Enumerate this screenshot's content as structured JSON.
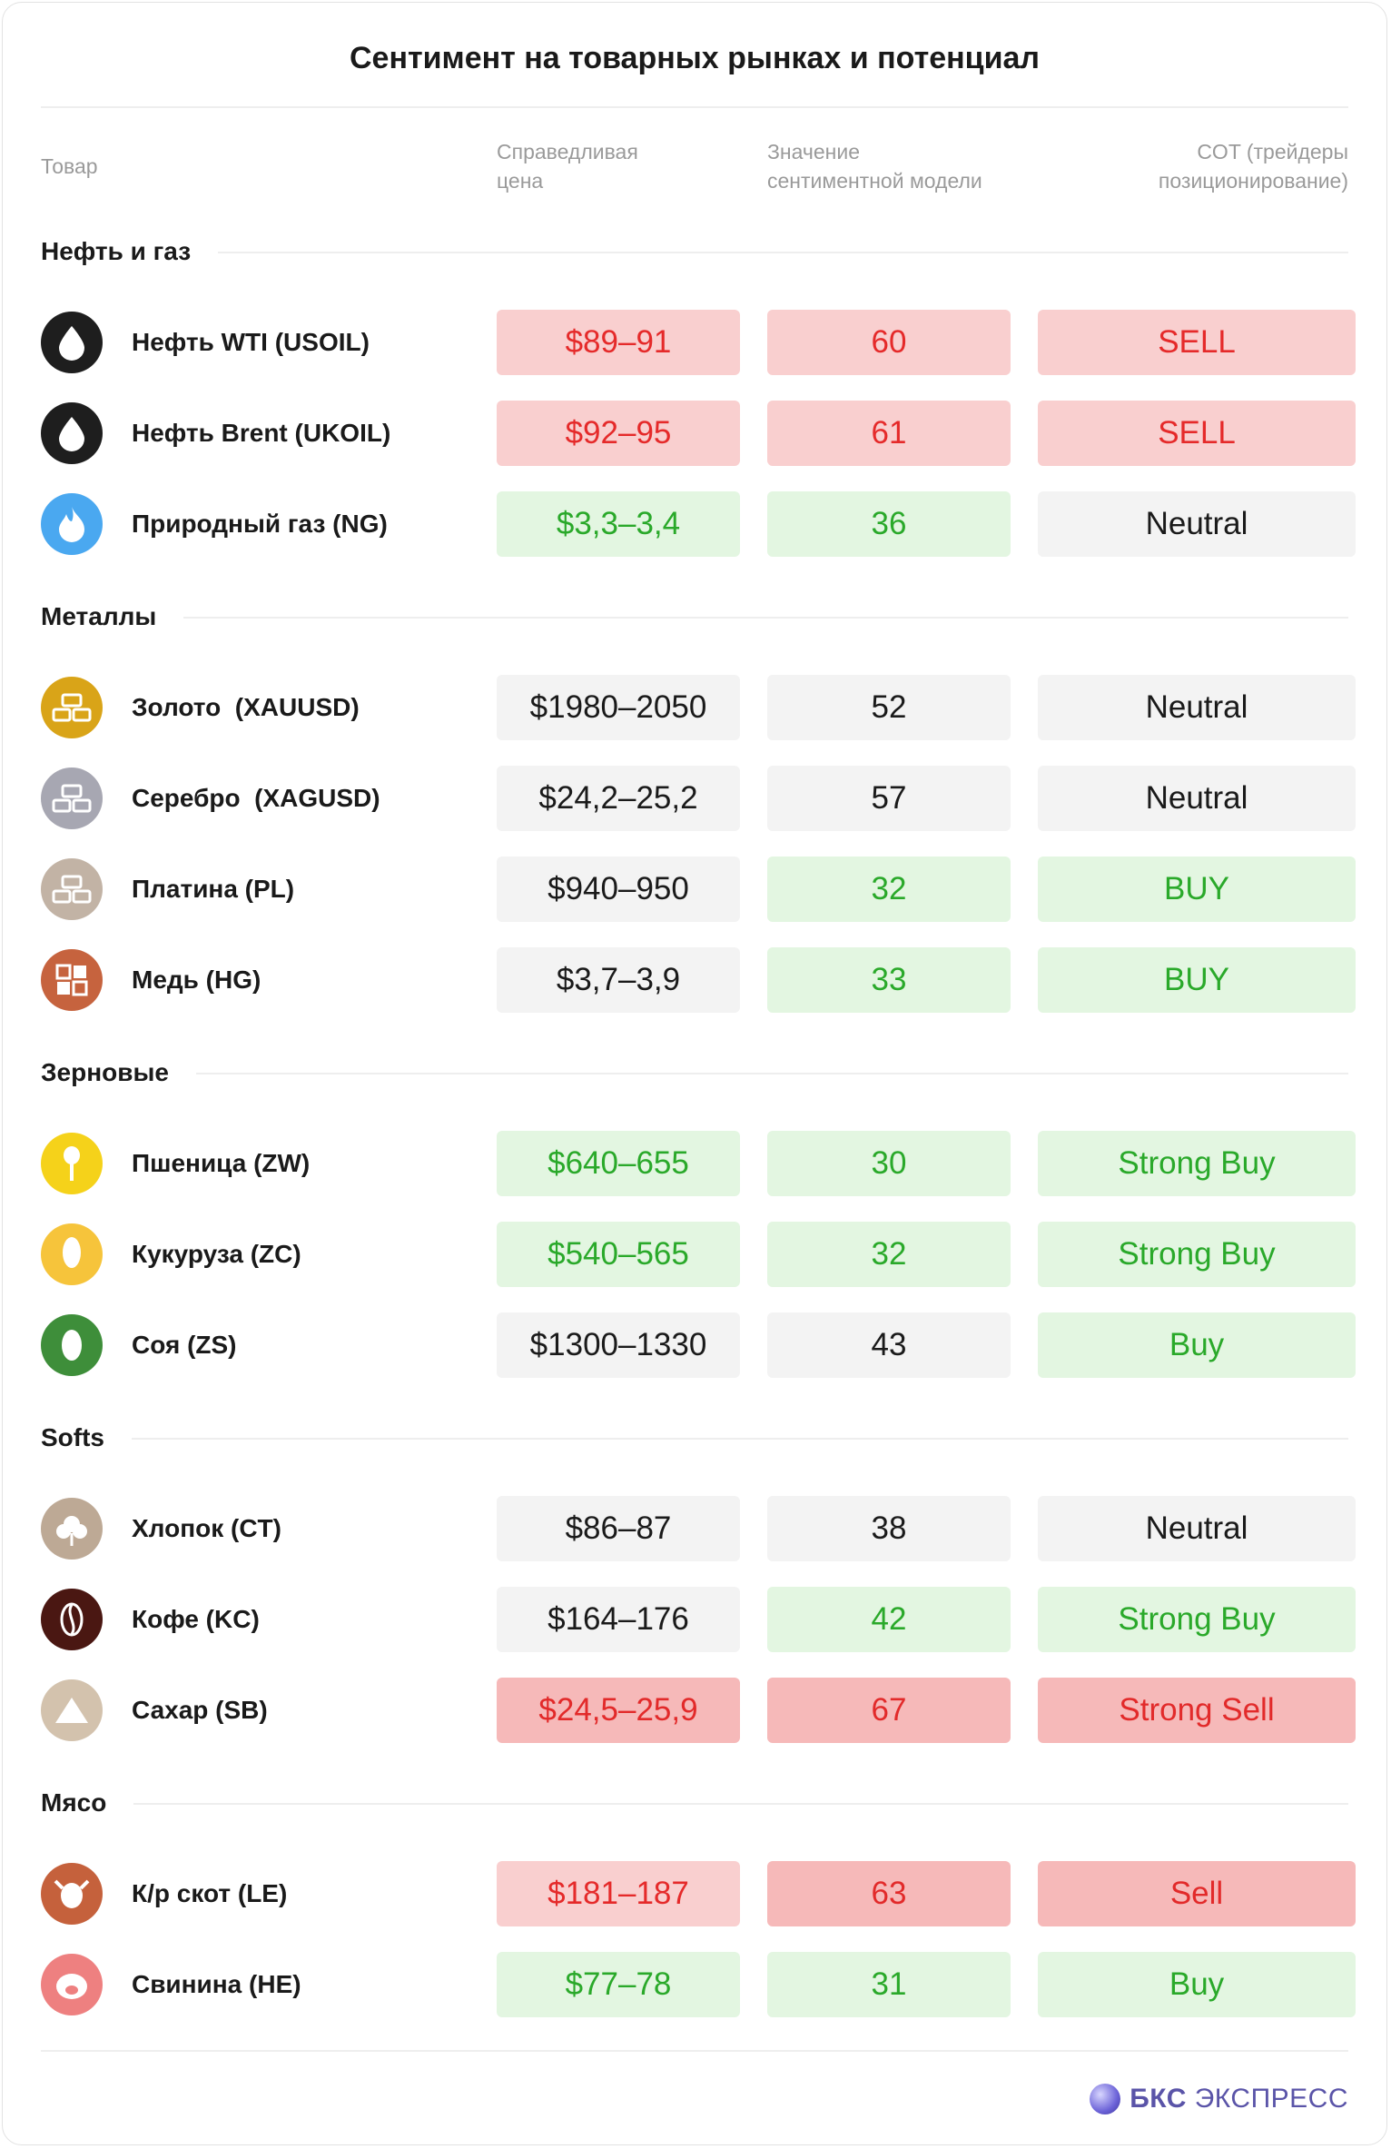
{
  "title": "Сентимент на товарных рынках и потенциал",
  "headers": {
    "col1": "Товар",
    "col2": "Справедливая\nцена",
    "col3": "Значение\nсентиментной модели",
    "col4": "COT (трейдеры\nпозиционирование)"
  },
  "sections": [
    {
      "label": "Нефть и газ"
    },
    {
      "label": "Металлы"
    },
    {
      "label": "Зерновые"
    },
    {
      "label": "Softs"
    },
    {
      "label": "Мясо"
    }
  ],
  "rows": [
    {
      "name": "Нефть WTI (USOIL)",
      "icon": "oil-drop-icon",
      "icon_color": "#1e1e1e",
      "price": "$89–91",
      "price_style": "red",
      "sentiment": "60",
      "sent_style": "red",
      "cot": "SELL",
      "cot_style": "red"
    },
    {
      "name": "Нефть Brent (UKOIL)",
      "icon": "oil-drop-icon",
      "icon_color": "#1e1e1e",
      "price": "$92–95",
      "price_style": "red",
      "sentiment": "61",
      "sent_style": "red",
      "cot": "SELL",
      "cot_style": "red"
    },
    {
      "name": "Природный газ (NG)",
      "icon": "flame-icon",
      "icon_color": "#4aa8f0",
      "price": "$3,3–3,4",
      "price_style": "green",
      "sentiment": "36",
      "sent_style": "green",
      "cot": "Neutral",
      "cot_style": "gray"
    },
    {
      "name": "Золото  (XAUUSD)",
      "icon": "gold-bars-icon",
      "icon_color": "#d9a418",
      "price": "$1980–2050",
      "price_style": "gray",
      "sentiment": "52",
      "sent_style": "gray",
      "cot": "Neutral",
      "cot_style": "gray"
    },
    {
      "name": "Серебро  (XAGUSD)",
      "icon": "silver-bars-icon",
      "icon_color": "#a7a7b2",
      "price": "$24,2–25,2",
      "price_style": "gray",
      "sentiment": "57",
      "sent_style": "gray",
      "cot": "Neutral",
      "cot_style": "gray"
    },
    {
      "name": "Платина (PL)",
      "icon": "platinum-bars-icon",
      "icon_color": "#c2b3a5",
      "price": "$940–950",
      "price_style": "gray",
      "sentiment": "32",
      "sent_style": "green",
      "cot": "BUY",
      "cot_style": "green"
    },
    {
      "name": "Медь (HG)",
      "icon": "copper-blocks-icon",
      "icon_color": "#c6633e",
      "price": "$3,7–3,9",
      "price_style": "gray",
      "sentiment": "33",
      "sent_style": "green",
      "cot": "BUY",
      "cot_style": "green"
    },
    {
      "name": "Пшеница (ZW)",
      "icon": "wheat-icon",
      "icon_color": "#f5d21a",
      "price": "$640–655",
      "price_style": "green",
      "sentiment": "30",
      "sent_style": "green",
      "cot": "Strong Buy",
      "cot_style": "green"
    },
    {
      "name": "Кукуруза (ZC)",
      "icon": "corn-icon",
      "icon_color": "#f6c43b",
      "price": "$540–565",
      "price_style": "green",
      "sentiment": "32",
      "sent_style": "green",
      "cot": "Strong Buy",
      "cot_style": "green"
    },
    {
      "name": "Соя (ZS)",
      "icon": "soybean-icon",
      "icon_color": "#3e8e3a",
      "price": "$1300–1330",
      "price_style": "gray",
      "sentiment": "43",
      "sent_style": "gray",
      "cot": "Buy",
      "cot_style": "green"
    },
    {
      "name": "Хлопок (CT)",
      "icon": "cotton-icon",
      "icon_color": "#bda995",
      "price": "$86–87",
      "price_style": "gray",
      "sentiment": "38",
      "sent_style": "gray",
      "cot": "Neutral",
      "cot_style": "gray"
    },
    {
      "name": "Кофе (KC)",
      "icon": "coffee-bean-icon",
      "icon_color": "#4a1712",
      "price": "$164–176",
      "price_style": "gray",
      "sentiment": "42",
      "sent_style": "green",
      "cot": "Strong Buy",
      "cot_style": "green"
    },
    {
      "name": "Сахар (SB)",
      "icon": "sugar-icon",
      "icon_color": "#d3c2ad",
      "price": "$24,5–25,9",
      "price_style": "red2",
      "sentiment": "67",
      "sent_style": "red2",
      "cot": "Strong Sell",
      "cot_style": "red2"
    },
    {
      "name": "К/р скот (LE)",
      "icon": "cow-icon",
      "icon_color": "#c5613c",
      "price": "$181–187",
      "price_style": "red",
      "sentiment": "63",
      "sent_style": "red2",
      "cot": "Sell",
      "cot_style": "red2"
    },
    {
      "name": "Свинина (HE)",
      "icon": "pig-icon",
      "icon_color": "#ee8080",
      "price": "$77–78",
      "price_style": "green",
      "sentiment": "31",
      "sent_style": "green",
      "cot": "Buy",
      "cot_style": "green"
    }
  ],
  "logo": {
    "bold": "БКС",
    "rest": "ЭКСПРЕСС"
  }
}
